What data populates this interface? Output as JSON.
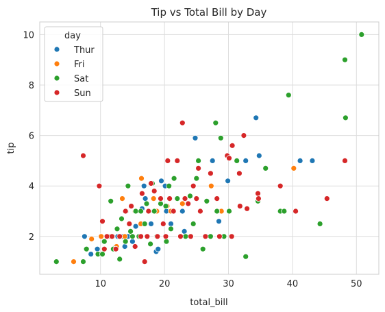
{
  "chart_data": {
    "type": "scatter",
    "title": "Tip vs Total Bill by Day",
    "xlabel": "total_bill",
    "ylabel": "tip",
    "xlim": [
      0.5,
      53.5
    ],
    "ylim": [
      0.5,
      10.5
    ],
    "xticks": [
      10,
      20,
      30,
      40,
      50
    ],
    "yticks": [
      2,
      4,
      6,
      8,
      10
    ],
    "grid": true,
    "legend": {
      "title": "day",
      "position": "top-left"
    },
    "series": [
      {
        "name": "Thur",
        "color": "#1f77b4",
        "points": [
          [
            7.5,
            2.0
          ],
          [
            8.5,
            1.3
          ],
          [
            9.5,
            1.5
          ],
          [
            10.1,
            2.0
          ],
          [
            10.5,
            1.8
          ],
          [
            11.2,
            2.0
          ],
          [
            11.9,
            2.0
          ],
          [
            12.4,
            1.6
          ],
          [
            12.7,
            2.0
          ],
          [
            13.4,
            2.0
          ],
          [
            13.8,
            1.6
          ],
          [
            14.3,
            2.0
          ],
          [
            15.0,
            1.8
          ],
          [
            15.5,
            2.4
          ],
          [
            16.0,
            2.0
          ],
          [
            16.5,
            3.1
          ],
          [
            16.8,
            4.0
          ],
          [
            17.0,
            3.5
          ],
          [
            17.5,
            3.0
          ],
          [
            17.9,
            2.5
          ],
          [
            18.3,
            3.0
          ],
          [
            18.7,
            1.4
          ],
          [
            19.0,
            1.5
          ],
          [
            19.5,
            4.2
          ],
          [
            20.1,
            4.0
          ],
          [
            20.3,
            3.0
          ],
          [
            21.0,
            2.5
          ],
          [
            22.8,
            3.0
          ],
          [
            23.1,
            2.2
          ],
          [
            24.8,
            5.9
          ],
          [
            27.5,
            5.0
          ],
          [
            28.5,
            2.6
          ],
          [
            29.9,
            4.2
          ],
          [
            32.7,
            5.0
          ],
          [
            34.3,
            6.7
          ],
          [
            34.8,
            5.2
          ],
          [
            41.2,
            5.0
          ],
          [
            43.1,
            5.0
          ]
        ]
      },
      {
        "name": "Fri",
        "color": "#ff7f0e",
        "points": [
          [
            5.8,
            1.0
          ],
          [
            8.6,
            1.9
          ],
          [
            10.1,
            2.0
          ],
          [
            11.4,
            2.0
          ],
          [
            12.5,
            1.6
          ],
          [
            13.4,
            3.5
          ],
          [
            13.8,
            2.0
          ],
          [
            15.4,
            3.0
          ],
          [
            16.3,
            2.5
          ],
          [
            16.4,
            4.3
          ],
          [
            18.3,
            3.5
          ],
          [
            18.8,
            3.0
          ],
          [
            20.4,
            3.2
          ],
          [
            21.0,
            3.0
          ],
          [
            22.8,
            3.3
          ],
          [
            27.3,
            4.0
          ],
          [
            28.9,
            3.0
          ],
          [
            40.2,
            4.7
          ]
        ]
      },
      {
        "name": "Sat",
        "color": "#2ca02c",
        "points": [
          [
            3.1,
            1.0
          ],
          [
            7.3,
            1.0
          ],
          [
            7.8,
            1.5
          ],
          [
            9.6,
            1.3
          ],
          [
            10.3,
            1.3
          ],
          [
            10.6,
            1.8
          ],
          [
            11.2,
            2.0
          ],
          [
            11.6,
            3.4
          ],
          [
            12.0,
            1.5
          ],
          [
            12.6,
            2.3
          ],
          [
            13.0,
            1.1
          ],
          [
            13.3,
            2.7
          ],
          [
            13.9,
            1.8
          ],
          [
            14.0,
            3.0
          ],
          [
            14.3,
            4.0
          ],
          [
            14.7,
            2.2
          ],
          [
            15.0,
            2.0
          ],
          [
            15.5,
            3.0
          ],
          [
            16.0,
            2.0
          ],
          [
            16.3,
            3.0
          ],
          [
            16.9,
            2.5
          ],
          [
            17.2,
            3.3
          ],
          [
            17.8,
            1.7
          ],
          [
            18.1,
            4.1
          ],
          [
            18.4,
            3.0
          ],
          [
            18.8,
            2.0
          ],
          [
            19.4,
            3.3
          ],
          [
            19.8,
            2.5
          ],
          [
            20.2,
            3.2
          ],
          [
            20.3,
            1.8
          ],
          [
            20.7,
            4.0
          ],
          [
            21.0,
            2.3
          ],
          [
            21.5,
            4.3
          ],
          [
            22.0,
            3.5
          ],
          [
            22.5,
            2.0
          ],
          [
            23.3,
            2.0
          ],
          [
            24.0,
            3.6
          ],
          [
            24.5,
            2.5
          ],
          [
            25.0,
            4.3
          ],
          [
            25.3,
            5.0
          ],
          [
            26.0,
            1.5
          ],
          [
            26.6,
            3.4
          ],
          [
            27.2,
            2.0
          ],
          [
            28.0,
            6.5
          ],
          [
            28.2,
            3.0
          ],
          [
            28.8,
            5.9
          ],
          [
            29.3,
            2.0
          ],
          [
            30.1,
            3.0
          ],
          [
            31.3,
            5.0
          ],
          [
            32.7,
            1.2
          ],
          [
            34.6,
            3.4
          ],
          [
            35.8,
            4.7
          ],
          [
            38.1,
            3.0
          ],
          [
            38.7,
            3.0
          ],
          [
            39.4,
            7.6
          ],
          [
            44.3,
            2.5
          ],
          [
            48.2,
            9.0
          ],
          [
            48.3,
            6.7
          ],
          [
            50.8,
            10.0
          ]
        ]
      },
      {
        "name": "Sun",
        "color": "#d62728",
        "points": [
          [
            7.3,
            5.2
          ],
          [
            9.8,
            4.0
          ],
          [
            10.3,
            2.6
          ],
          [
            10.6,
            1.5
          ],
          [
            11.0,
            2.0
          ],
          [
            11.8,
            2.0
          ],
          [
            12.4,
            1.5
          ],
          [
            13.0,
            2.0
          ],
          [
            13.9,
            3.0
          ],
          [
            14.5,
            2.5
          ],
          [
            14.8,
            3.2
          ],
          [
            15.4,
            1.6
          ],
          [
            16.3,
            2.0
          ],
          [
            16.5,
            3.7
          ],
          [
            16.9,
            1.0
          ],
          [
            17.3,
            2.0
          ],
          [
            17.5,
            3.0
          ],
          [
            17.9,
            4.1
          ],
          [
            18.4,
            3.8
          ],
          [
            18.9,
            2.0
          ],
          [
            19.4,
            3.5
          ],
          [
            19.8,
            2.5
          ],
          [
            20.2,
            2.0
          ],
          [
            20.5,
            5.0
          ],
          [
            20.8,
            3.5
          ],
          [
            21.4,
            3.0
          ],
          [
            22.0,
            5.0
          ],
          [
            22.5,
            2.0
          ],
          [
            22.8,
            6.5
          ],
          [
            23.2,
            3.5
          ],
          [
            23.7,
            3.3
          ],
          [
            24.1,
            2.0
          ],
          [
            24.5,
            4.0
          ],
          [
            25.0,
            3.5
          ],
          [
            25.3,
            4.7
          ],
          [
            25.6,
            3.0
          ],
          [
            26.4,
            2.0
          ],
          [
            27.2,
            4.5
          ],
          [
            28.2,
            3.5
          ],
          [
            28.6,
            2.0
          ],
          [
            29.8,
            5.2
          ],
          [
            30.1,
            5.1
          ],
          [
            30.5,
            2.0
          ],
          [
            30.6,
            5.6
          ],
          [
            31.7,
            4.5
          ],
          [
            31.8,
            3.2
          ],
          [
            32.4,
            6.0
          ],
          [
            32.9,
            3.1
          ],
          [
            34.6,
            3.7
          ],
          [
            34.7,
            3.5
          ],
          [
            38.1,
            4.0
          ],
          [
            40.5,
            3.0
          ],
          [
            45.4,
            3.5
          ],
          [
            48.2,
            5.0
          ]
        ]
      }
    ]
  }
}
